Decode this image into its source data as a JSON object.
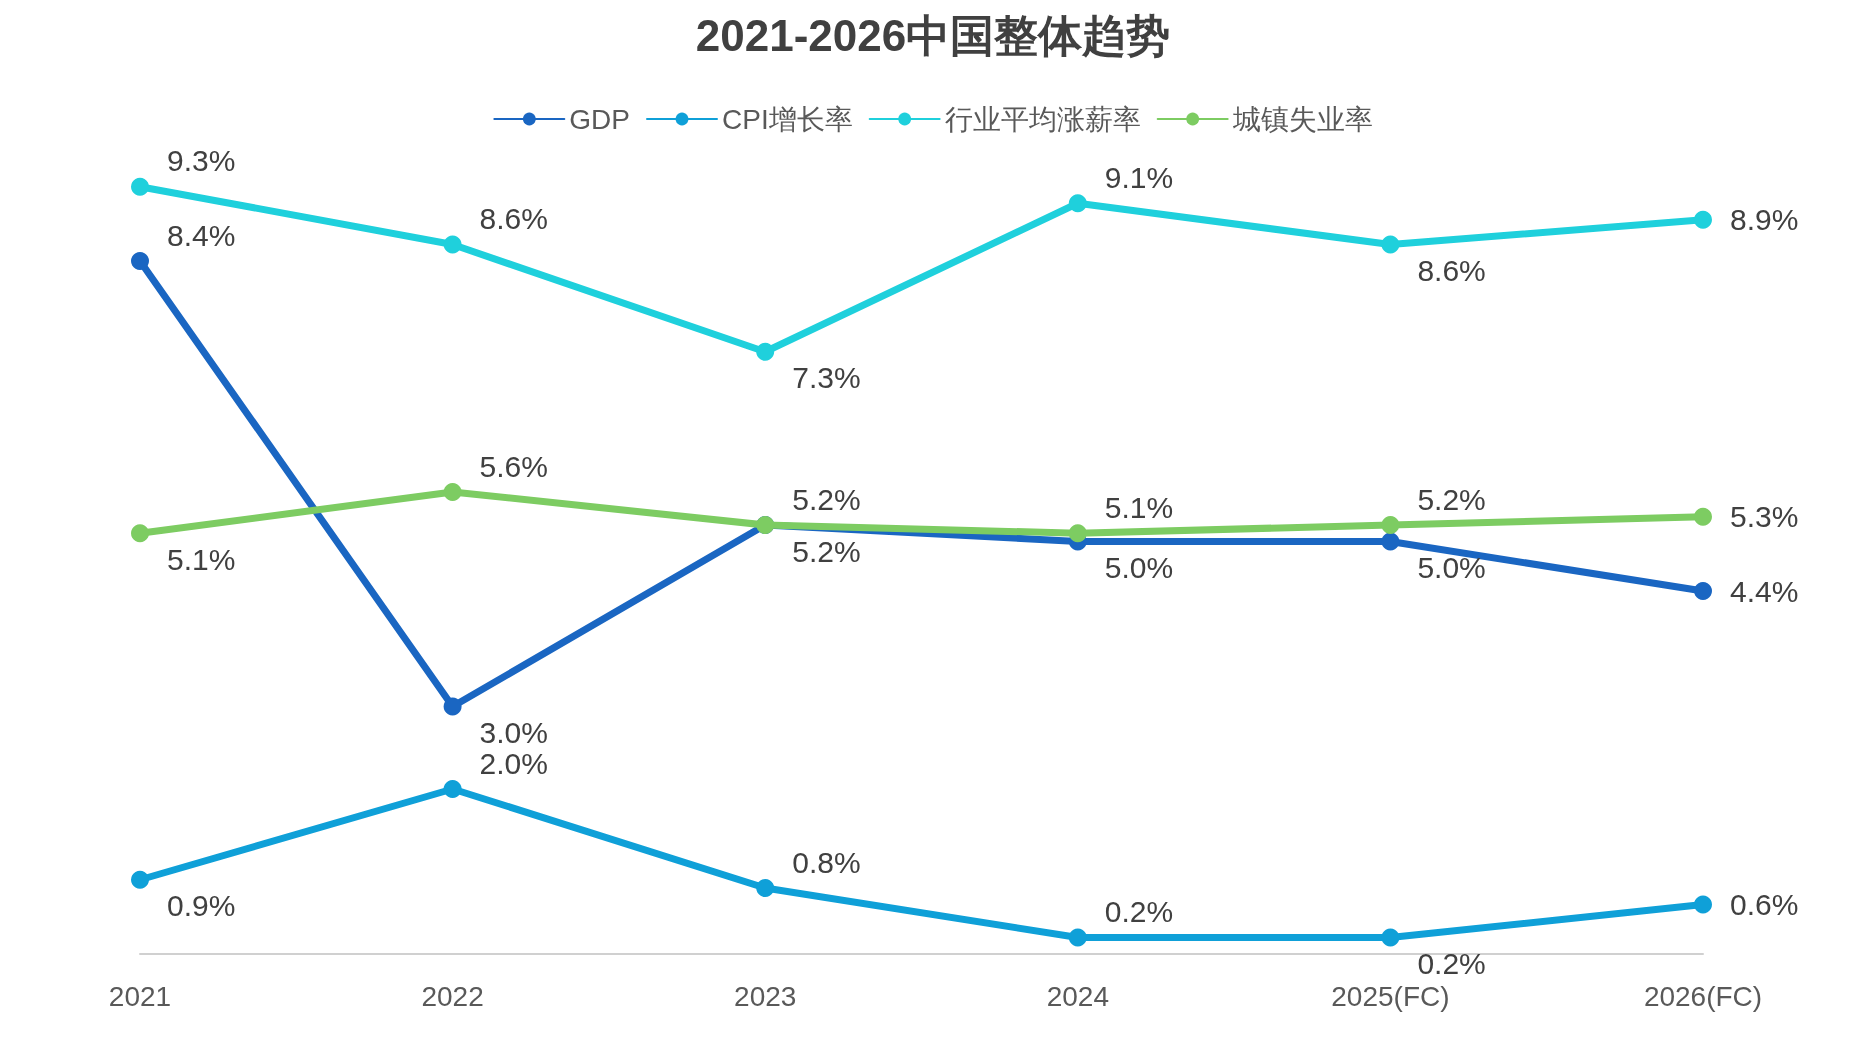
{
  "chart_data": {
    "type": "line",
    "title": "2021-2026中国整体趋势",
    "categories": [
      "2021",
      "2022",
      "2023",
      "2024",
      "2025(FC)",
      "2026(FC)"
    ],
    "legend": "top",
    "grid": false,
    "marker": "circle",
    "line_style": "solid",
    "series": [
      {
        "name": "GDP",
        "color": "#1a66c2",
        "values": [
          8.4,
          3.0,
          5.2,
          5.0,
          5.0,
          4.4
        ],
        "value_labels": [
          "8.4%",
          "3.0%",
          "5.2%",
          "5.0%",
          "5.0%",
          "4.4%"
        ]
      },
      {
        "name": "CPI增长率",
        "color": "#0fa0d8",
        "values": [
          0.9,
          2.0,
          0.8,
          0.2,
          0.2,
          0.6
        ],
        "value_labels": [
          "0.9%",
          "2.0%",
          "0.8%",
          "0.2%",
          "0.2%",
          "0.6%"
        ]
      },
      {
        "name": "行业平均涨薪率",
        "color": "#1fd0dc",
        "values": [
          9.3,
          8.6,
          7.3,
          9.1,
          8.6,
          8.9
        ],
        "value_labels": [
          "9.3%",
          "8.6%",
          "7.3%",
          "9.1%",
          "8.6%",
          "8.9%"
        ]
      },
      {
        "name": "城镇失业率",
        "color": "#7dcc62",
        "values": [
          5.1,
          5.6,
          5.2,
          5.1,
          5.2,
          5.3
        ],
        "value_labels": [
          "5.1%",
          "5.6%",
          "5.2%",
          "5.1%",
          "5.2%",
          "5.3%"
        ]
      }
    ]
  }
}
